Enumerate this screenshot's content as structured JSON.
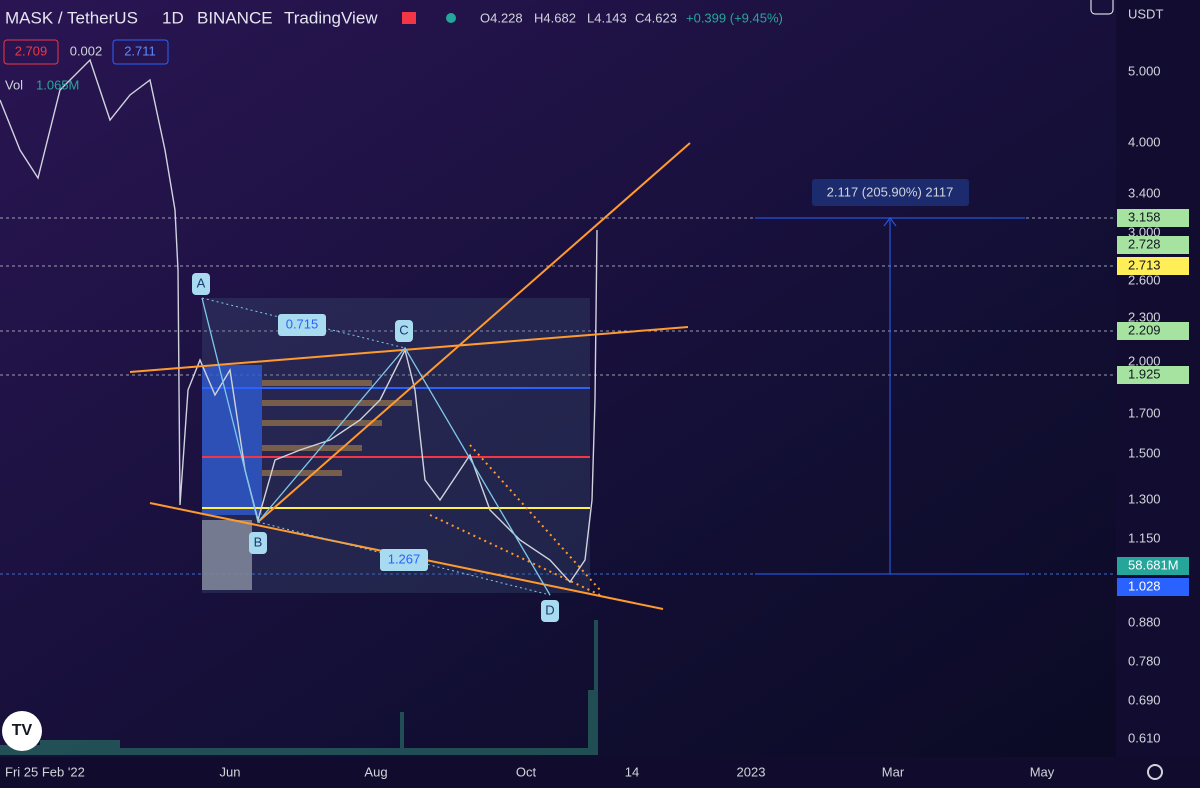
{
  "header": {
    "symbol": "MASK / TetherUS",
    "interval": "1D",
    "exchange": "BINANCE",
    "source": "TradingView",
    "open": "O4.228",
    "high": "H4.682",
    "low": "L4.143",
    "close": "C4.623",
    "change": "+0.399 (+9.45%)"
  },
  "bid_ask": {
    "bid": "2.709",
    "spread": "0.002",
    "ask": "2.711"
  },
  "volume": {
    "label": "Vol",
    "value": "1.065M"
  },
  "price_axis": {
    "currency": "USDT",
    "ticks": [
      "5.000",
      "4.000",
      "3.400",
      "3.000",
      "2.600",
      "2.300",
      "2.000",
      "1.700",
      "1.500",
      "1.300",
      "1.150",
      "0.880",
      "0.780",
      "0.690",
      "0.610"
    ]
  },
  "price_labels": [
    "3.158",
    "2.728",
    "2.713",
    "2.209",
    "1.925",
    "58.681M",
    "1.028"
  ],
  "time_axis": {
    "start": "Fri 25 Feb '22",
    "ticks": [
      "Jun",
      "Aug",
      "Oct",
      "14",
      "2023",
      "Mar",
      "May"
    ]
  },
  "drawings": {
    "points": [
      "A",
      "B",
      "C",
      "D"
    ],
    "ratios": [
      "0.715",
      "1.267"
    ],
    "measure": "2.117 (205.90%) 2117"
  }
}
